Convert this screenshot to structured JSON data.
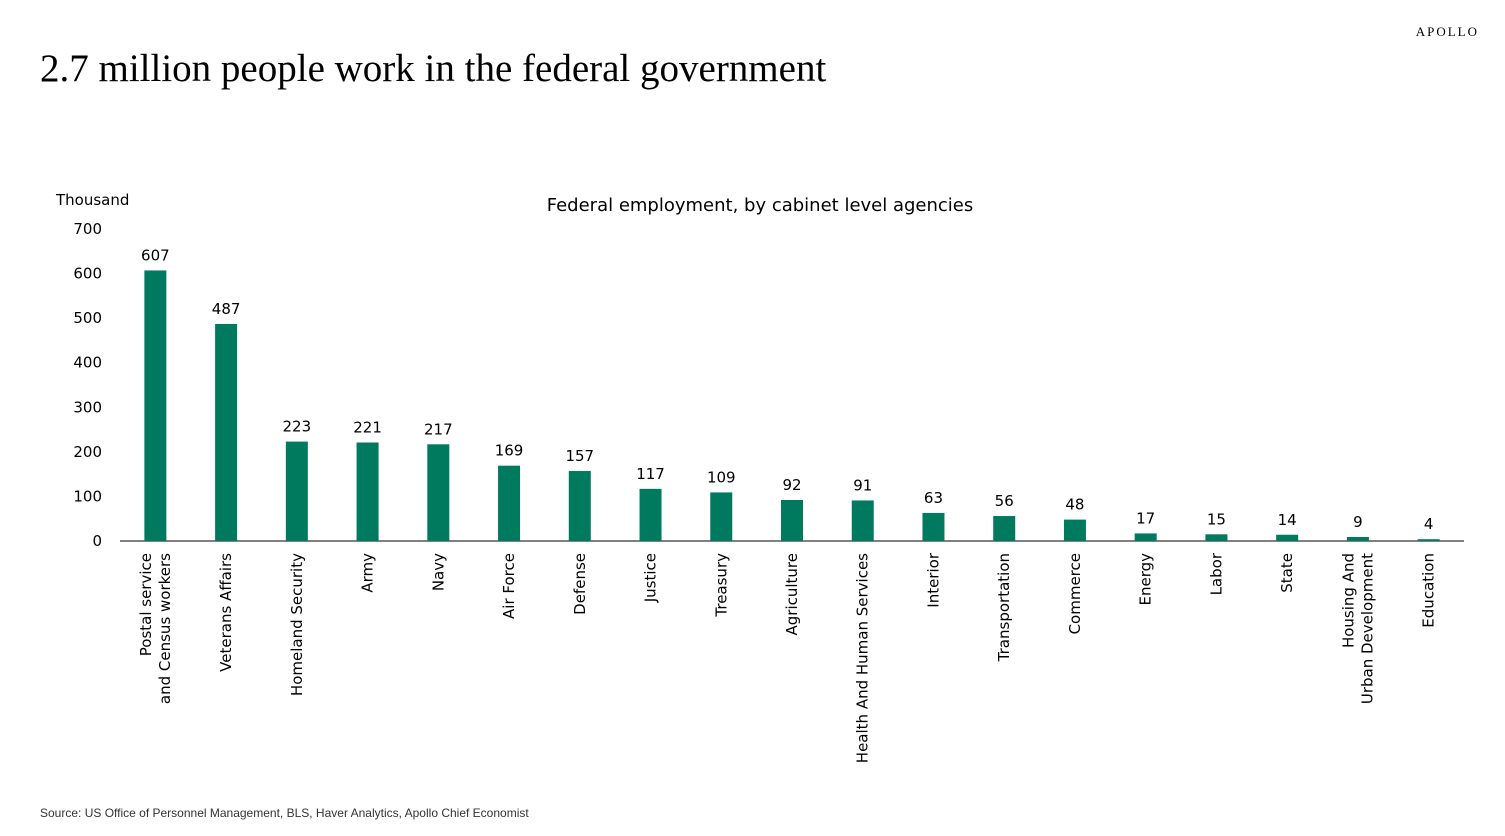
{
  "brand": {
    "name": "APOLLO"
  },
  "headline": "2.7 million people work in the federal government",
  "source": "Source: US Office of Personnel Management, BLS, Haver Analytics, Apollo Chief Economist",
  "colors": {
    "bar": "#007a5e",
    "text": "#000000",
    "axis": "#000000"
  },
  "chart_data": {
    "type": "bar",
    "title": "Federal employment, by cabinet level agencies",
    "ylabel": "Thousand",
    "xlabel": "",
    "ylim": [
      0,
      700
    ],
    "yticks": [
      0,
      100,
      200,
      300,
      400,
      500,
      600,
      700
    ],
    "grid": false,
    "categories": [
      "Postal service and Census workers",
      "Veterans Affairs",
      "Homeland Security",
      "Army",
      "Navy",
      "Air Force",
      "Defense",
      "Justice",
      "Treasury",
      "Agriculture",
      "Health And Human Services",
      "Interior",
      "Transportation",
      "Commerce",
      "Energy",
      "Labor",
      "State",
      "Housing And Urban Development",
      "Education"
    ],
    "values": [
      607,
      487,
      223,
      221,
      217,
      169,
      157,
      117,
      109,
      92,
      91,
      63,
      56,
      48,
      17,
      15,
      14,
      9,
      4
    ]
  }
}
